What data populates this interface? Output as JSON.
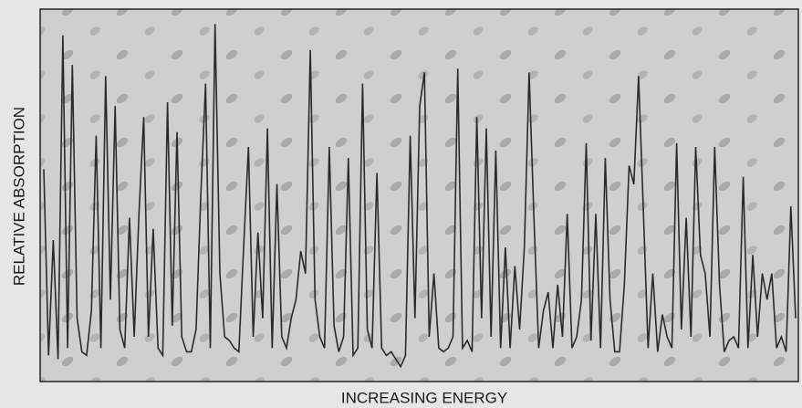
{
  "chart_data": {
    "type": "line",
    "x_label": "INCREASING ENERGY",
    "y_label": "RELATIVE ABSORPTION",
    "color": "#2a2a2a",
    "ylim": [
      0,
      100
    ],
    "values": [
      57,
      7,
      38,
      6,
      93,
      9,
      85,
      17,
      8,
      7,
      19,
      66,
      9,
      82,
      22,
      74,
      14,
      9,
      44,
      12,
      45,
      71,
      12,
      41,
      9,
      7,
      75,
      15,
      67,
      12,
      8,
      8,
      14,
      50,
      80,
      9,
      96,
      29,
      12,
      11,
      9,
      8,
      36,
      63,
      12,
      40,
      17,
      68,
      9,
      53,
      12,
      9,
      17,
      22,
      35,
      29,
      89,
      22,
      12,
      9,
      63,
      15,
      8,
      12,
      60,
      7,
      9,
      80,
      14,
      9,
      56,
      9,
      7,
      8,
      6,
      4,
      7,
      66,
      17,
      74,
      83,
      12,
      29,
      9,
      8,
      9,
      12,
      84,
      9,
      11,
      8,
      71,
      17,
      68,
      12,
      62,
      9,
      36,
      9,
      31,
      14,
      36,
      83,
      44,
      9,
      19,
      24,
      9,
      26,
      12,
      45,
      9,
      12,
      22,
      64,
      11,
      45,
      9,
      60,
      22,
      8,
      8,
      26,
      58,
      53,
      82,
      46,
      9,
      29,
      8,
      18,
      12,
      9,
      64,
      14,
      44,
      12,
      63,
      34,
      29,
      12,
      63,
      26,
      8,
      11,
      12,
      9,
      55,
      9,
      34,
      12,
      29,
      22,
      29,
      9,
      12,
      8,
      47,
      17
    ]
  }
}
